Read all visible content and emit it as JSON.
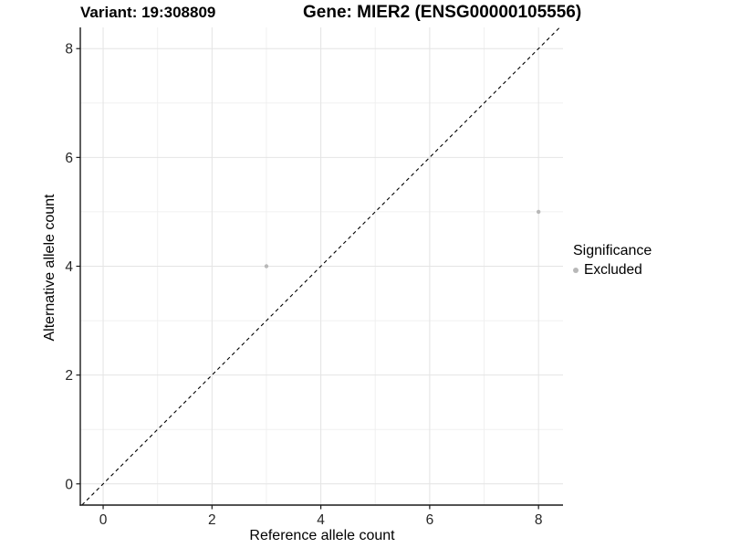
{
  "colors": {
    "background": "#ffffff",
    "point": "#b8b8b8",
    "grid_major": "#e4e4e4",
    "grid_minor": "#f0f0f0",
    "axis_line": "#1a1a1a",
    "tick_label": "#262626",
    "text": "#000000",
    "reference_line": "#000000"
  },
  "chart_data": {
    "type": "scatter",
    "title_left": "Variant: 19:308809",
    "title_right": "Gene: MIER2 (ENSG00000105556)",
    "xlabel": "Reference allele count",
    "ylabel": "Alternative allele count",
    "xlim": [
      -0.42,
      8.45
    ],
    "ylim": [
      -0.39,
      8.39
    ],
    "xticks": [
      0,
      2,
      4,
      6,
      8
    ],
    "yticks": [
      0,
      2,
      4,
      6,
      8
    ],
    "x_minor_ticks": [
      1,
      3,
      5,
      7
    ],
    "y_minor_ticks": [
      1,
      3,
      5,
      7
    ],
    "grid": true,
    "reference_line": {
      "equation": "y = x",
      "style": "dashed",
      "color": "#000000"
    },
    "series": [
      {
        "name": "Excluded",
        "color": "#b8b8b8",
        "points": [
          {
            "x": 3,
            "y": 4
          },
          {
            "x": 8,
            "y": 5
          }
        ]
      }
    ],
    "legend": {
      "title": "Significance",
      "position": "right",
      "items": [
        {
          "label": "Excluded",
          "color": "#b8b8b8"
        }
      ]
    }
  }
}
